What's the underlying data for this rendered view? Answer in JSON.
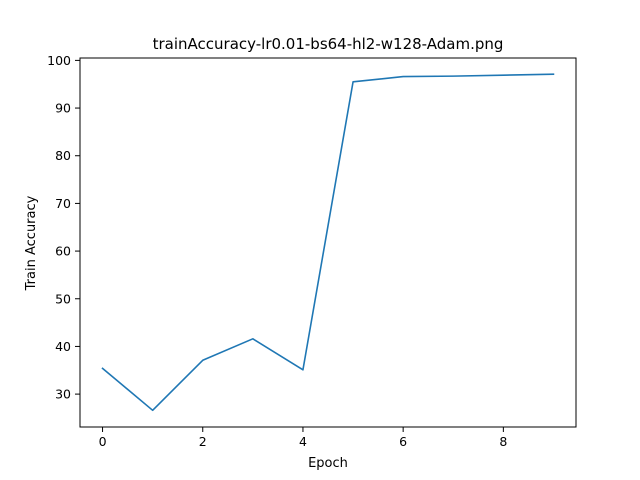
{
  "chart_data": {
    "type": "line",
    "title": "trainAccuracy-lr0.01-bs64-hl2-w128-Adam.png",
    "xlabel": "Epoch",
    "ylabel": "Train Accuracy",
    "xlim": [
      -0.45,
      9.45
    ],
    "ylim": [
      23.1,
      100.5
    ],
    "xticks": [
      0,
      2,
      4,
      6,
      8
    ],
    "yticks": [
      30,
      40,
      50,
      60,
      70,
      80,
      90,
      100
    ],
    "grid": false,
    "series": [
      {
        "color": "#1f77b4",
        "x": [
          0,
          1,
          2,
          3,
          4,
          5,
          6,
          7,
          8,
          9
        ],
        "y": [
          35.4,
          26.6,
          37.1,
          41.6,
          35.1,
          95.5,
          96.6,
          96.7,
          96.9,
          97.1
        ]
      }
    ]
  }
}
